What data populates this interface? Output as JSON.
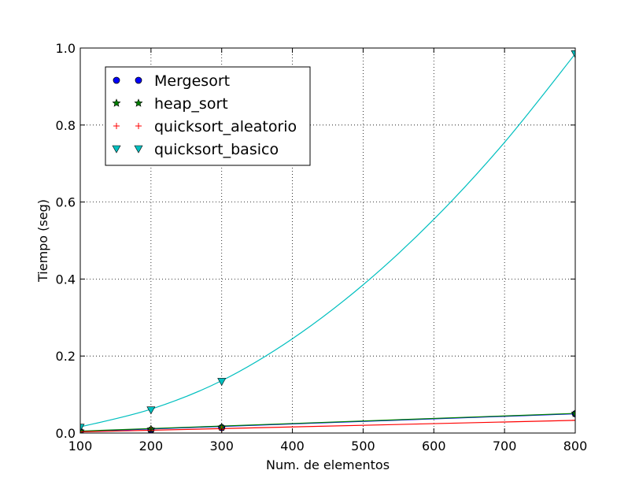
{
  "chart_data": {
    "type": "line",
    "xlabel": "Num. de elementos",
    "ylabel": "Tiempo (seg)",
    "xlim": [
      100,
      800
    ],
    "ylim": [
      0,
      1.0
    ],
    "x_ticks": [
      "100",
      "200",
      "300",
      "400",
      "500",
      "600",
      "700",
      "800"
    ],
    "y_ticks": [
      "0.0",
      "0.2",
      "0.4",
      "0.6",
      "0.8",
      "1.0"
    ],
    "grid": true,
    "legend_position": "upper-left",
    "x_points": [
      100,
      200,
      300,
      800
    ],
    "series": [
      {
        "name": "Mergesort",
        "color": "#0000ff",
        "marker": "circle",
        "values": [
          0.004,
          0.008,
          0.014,
          0.05
        ],
        "curve_x": [
          100,
          800
        ],
        "curve_y": [
          0.004,
          0.05
        ]
      },
      {
        "name": "heap_sort",
        "color": "#008000",
        "marker": "star",
        "values": [
          0.005,
          0.01,
          0.015,
          0.051
        ],
        "curve_x": [
          100,
          800
        ],
        "curve_y": [
          0.005,
          0.051
        ]
      },
      {
        "name": "quicksort_aleatorio",
        "color": "#ff0000",
        "marker": "plus",
        "values": [
          0.003,
          0.007,
          0.01,
          0.033
        ],
        "curve_x": [
          100,
          800
        ],
        "curve_y": [
          0.003,
          0.033
        ]
      },
      {
        "name": "quicksort_basico",
        "color": "#00bfbf",
        "marker": "triangle-down",
        "values": [
          0.015,
          0.06,
          0.134,
          0.985
        ],
        "curve_x": [
          100,
          200,
          300,
          400,
          500,
          600,
          700,
          800
        ],
        "curve_y": [
          0.016,
          0.062,
          0.136,
          0.245,
          0.385,
          0.555,
          0.755,
          0.985
        ]
      }
    ]
  }
}
